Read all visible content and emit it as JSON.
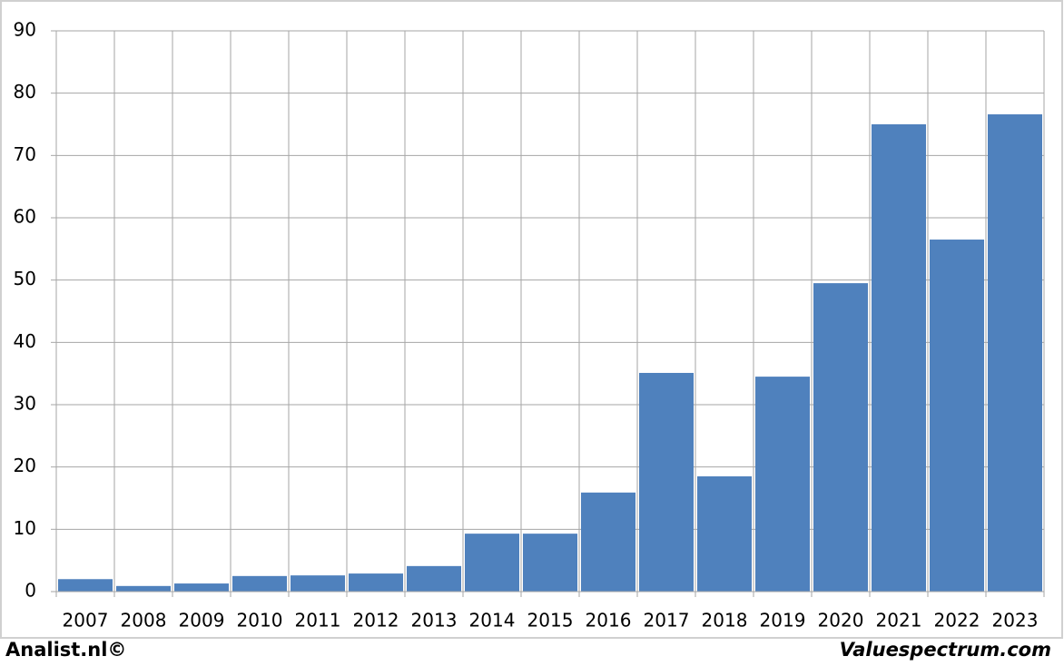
{
  "chart_data": {
    "type": "bar",
    "categories": [
      "2007",
      "2008",
      "2009",
      "2010",
      "2011",
      "2012",
      "2013",
      "2014",
      "2015",
      "2016",
      "2017",
      "2018",
      "2019",
      "2020",
      "2021",
      "2022",
      "2023"
    ],
    "values": [
      2.0,
      0.9,
      1.3,
      2.5,
      2.6,
      2.9,
      4.1,
      9.3,
      9.3,
      15.9,
      35.1,
      18.5,
      34.5,
      49.5,
      75.0,
      56.5,
      76.6
    ],
    "color": "#4f81bd",
    "ylim": [
      0,
      90
    ],
    "yticks": [
      0,
      10,
      20,
      30,
      40,
      50,
      60,
      70,
      80,
      90
    ],
    "grid": true,
    "footer_left": "Analist.nl©",
    "footer_right": "Valuespectrum.com"
  }
}
